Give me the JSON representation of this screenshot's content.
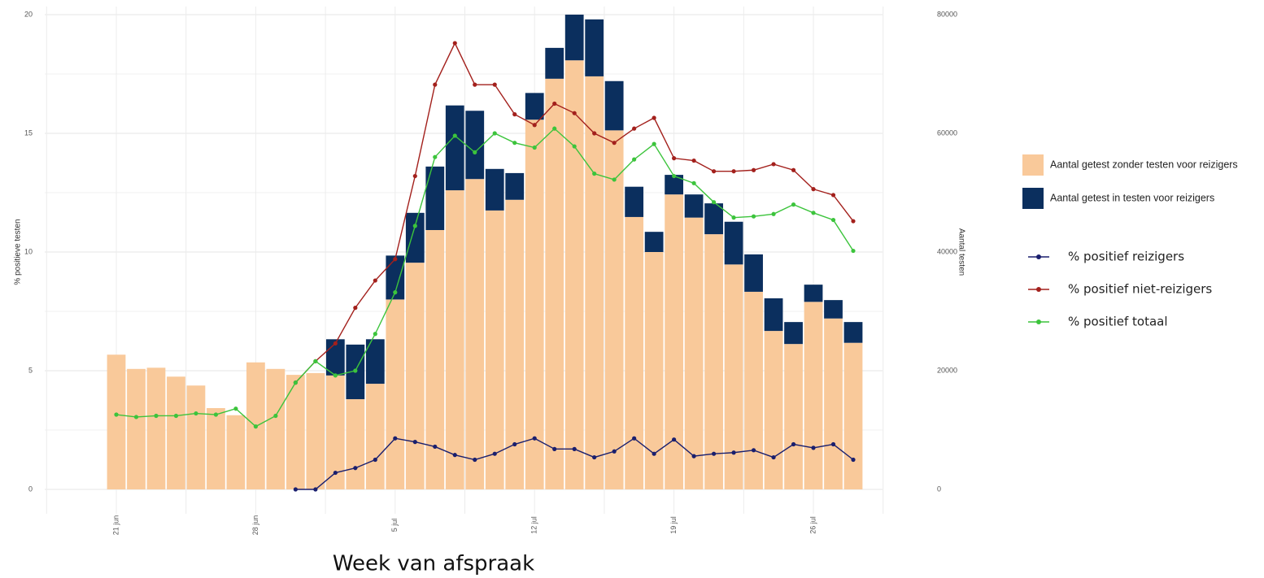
{
  "chart_data": {
    "type": "bar",
    "stacked": true,
    "x_label": "Week van afspraak",
    "y_label": "% positieve testen",
    "y2_label": "Aantal testen",
    "categories": [
      "21 jun",
      null,
      null,
      null,
      null,
      null,
      null,
      "28 jun",
      null,
      null,
      null,
      null,
      null,
      null,
      "5 jul",
      null,
      null,
      null,
      null,
      null,
      null,
      "12 jul",
      null,
      null,
      null,
      null,
      null,
      null,
      "19 jul",
      null,
      null,
      null,
      null,
      null,
      null,
      "26 jul",
      null,
      null
    ],
    "ylim": [
      0,
      20
    ],
    "yticks": [
      0,
      5,
      10,
      15,
      20
    ],
    "y2lim": [
      0,
      80000
    ],
    "y2ticks": [
      0,
      20000,
      40000,
      60000,
      80000
    ],
    "grid": true,
    "series": [
      {
        "name": "Aantal getest zonder testen voor reizigers",
        "type": "bar",
        "axis": "y2",
        "color": "#f9c99a",
        "values": [
          22700,
          20300,
          20500,
          19000,
          17500,
          13700,
          12500,
          21400,
          20300,
          19300,
          19600,
          19200,
          15200,
          17800,
          32000,
          38200,
          43700,
          50400,
          52300,
          47000,
          48800,
          62300,
          69200,
          72300,
          69600,
          60500,
          45900,
          40000,
          49700,
          45800,
          43000,
          37900,
          33300,
          26700,
          24500,
          31600,
          28800,
          24700
        ]
      },
      {
        "name": "Aantal getest in testen voor reizigers",
        "type": "bar",
        "axis": "y2",
        "color": "#0b2f5e",
        "values": [
          null,
          null,
          null,
          null,
          null,
          null,
          null,
          null,
          null,
          null,
          null,
          6100,
          9200,
          7500,
          7400,
          8400,
          10700,
          14300,
          11500,
          7000,
          4500,
          4500,
          5200,
          7700,
          9600,
          8300,
          5100,
          3400,
          3300,
          3900,
          5200,
          7200,
          6300,
          5500,
          3700,
          2900,
          3100,
          3500
        ]
      },
      {
        "name": "% positief reizigers",
        "type": "line",
        "color": "#1a1f6e",
        "values": [
          null,
          null,
          null,
          null,
          null,
          null,
          null,
          null,
          null,
          0,
          0,
          0.7,
          0.9,
          1.25,
          2.15,
          2.0,
          1.8,
          1.45,
          1.25,
          1.5,
          1.9,
          2.15,
          1.7,
          1.7,
          1.35,
          1.6,
          2.15,
          1.5,
          2.1,
          1.4,
          1.5,
          1.55,
          1.65,
          1.35,
          1.9,
          1.75,
          1.9,
          1.25
        ]
      },
      {
        "name": "% positief niet-reizigers",
        "type": "line",
        "color": "#a3201c",
        "values": [
          null,
          null,
          null,
          null,
          null,
          null,
          null,
          null,
          null,
          4.5,
          5.4,
          6.15,
          7.65,
          8.8,
          9.7,
          13.2,
          17.05,
          18.8,
          17.05,
          17.05,
          15.8,
          15.35,
          16.25,
          15.85,
          15.0,
          14.6,
          15.2,
          15.65,
          13.95,
          13.85,
          13.4,
          13.4,
          13.45,
          13.7,
          13.45,
          12.65,
          12.4,
          11.3
        ]
      },
      {
        "name": "% positief totaal",
        "type": "line",
        "color": "#3cc43c",
        "values": [
          3.15,
          3.05,
          3.1,
          3.1,
          3.2,
          3.15,
          3.4,
          2.65,
          3.1,
          4.5,
          5.4,
          4.8,
          5.0,
          6.55,
          8.3,
          11.1,
          14.0,
          14.9,
          14.2,
          15.0,
          14.6,
          14.4,
          15.2,
          14.45,
          13.3,
          13.05,
          13.9,
          14.55,
          13.2,
          12.9,
          12.1,
          11.45,
          11.5,
          11.6,
          12.0,
          11.65,
          11.35,
          10.05
        ]
      }
    ]
  }
}
